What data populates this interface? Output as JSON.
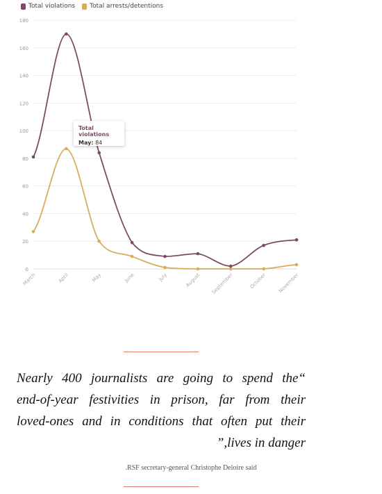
{
  "chart_data": {
    "type": "line",
    "categories": [
      "March",
      "April",
      "May",
      "June",
      "July",
      "August",
      "September",
      "October",
      "November"
    ],
    "series": [
      {
        "name": "Total violations",
        "color": "#7b4a6b",
        "values": [
          81,
          170,
          84,
          19,
          9,
          11,
          2,
          17,
          21
        ]
      },
      {
        "name": "Total arrests/detentions",
        "color": "#d8ac5b",
        "values": [
          27,
          87,
          20,
          9,
          1,
          0,
          0,
          0,
          3
        ]
      }
    ],
    "ylim": [
      0,
      180
    ],
    "yticks": [
      0,
      20,
      40,
      60,
      80,
      100,
      120,
      140,
      160,
      180
    ],
    "grid": true,
    "legend_position": "top-left",
    "tooltip": {
      "series": "Total violations",
      "label": "May:",
      "value": "84"
    }
  },
  "quote": {
    "lines": [
      "Nearly 400 journalists are going to spend the“",
      "end-of-year festivities in prison, far from their",
      "loved-ones and in conditions that often put their",
      "”,lives in danger"
    ]
  },
  "caption": ".RSF secretary-general Christophe Deloire said"
}
